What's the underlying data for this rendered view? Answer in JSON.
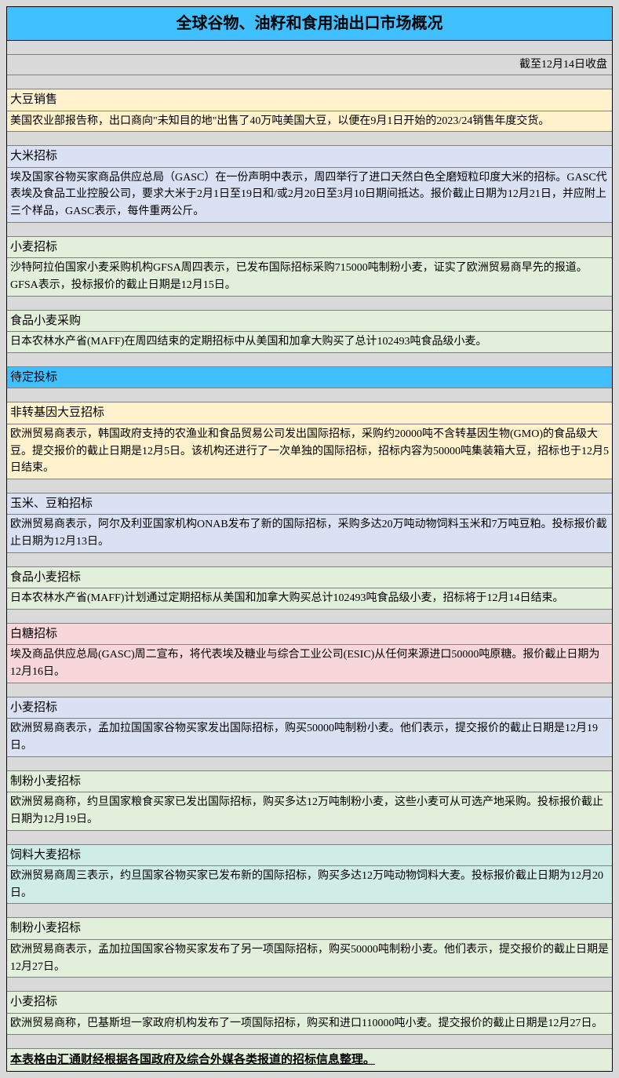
{
  "title": "全球谷物、油籽和食用油出口市场概况",
  "date_line": "截至12月14日收盘",
  "section_pending": "待定投标",
  "footer": "本表格由汇通财经根据各国政府及综合外媒各类报道的招标信息整理。",
  "colors": {
    "title_bg": "#40c0ff",
    "page_bg": "#d9d9d9",
    "yellow": "#fff2cc",
    "blue": "#d9e1f2",
    "green": "#e2efda",
    "pink": "#fce4d6",
    "teal": "#ddebf0",
    "rose": "#f8d7da",
    "mint": "#d0ece7"
  },
  "items1": [
    {
      "title": "大豆销售",
      "body": "美国农业部报告称，出口商向\"未知目的地\"出售了40万吨美国大豆，以便在9月1日开始的2023/24销售年度交货。",
      "color": "yellow"
    },
    {
      "title": "大米招标",
      "body": "埃及国家谷物买家商品供应总局（GASC）在一份声明中表示，周四举行了进口天然白色全磨短粒印度大米的招标。GASC代表埃及食品工业控股公司，要求大米于2月1日至19日和/或2月20日至3月10日期间抵达。报价截止日期为12月21日，并应附上三个样品，GASC表示，每件重两公斤。",
      "color": "blue"
    },
    {
      "title": "小麦招标",
      "body": "沙特阿拉伯国家小麦采购机构GFSA周四表示，已发布国际招标采购715000吨制粉小麦，证实了欧洲贸易商早先的报道。GFSA表示，投标报价的截止日期是12月15日。",
      "color": "green"
    },
    {
      "title": "食品小麦采购",
      "body": "日本农林水产省(MAFF)在周四结束的定期招标中从美国和加拿大购买了总计102493吨食品级小麦。",
      "color": "green"
    }
  ],
  "items2": [
    {
      "title": "非转基因大豆招标",
      "body": "欧洲贸易商表示，韩国政府支持的农渔业和食品贸易公司发出国际招标，采购约20000吨不含转基因生物(GMO)的食品级大豆。提交报价的截止日期是12月5日。该机构还进行了一次单独的国际招标，招标内容为50000吨集装箱大豆，招标也于12月5日结束。",
      "color": "yellow"
    },
    {
      "title": "玉米、豆粕招标",
      "body": "欧洲贸易商表示，阿尔及利亚国家机构ONAB发布了新的国际招标，采购多达20万吨动物饲料玉米和7万吨豆粕。投标报价截止日期为12月13日。",
      "color": "blue"
    },
    {
      "title": "食品小麦招标",
      "body": "日本农林水产省(MAFF)计划通过定期招标从美国和加拿大购买总计102493吨食品级小麦，招标将于12月14日结束。",
      "color": "green"
    },
    {
      "title": "白糖招标",
      "body": "埃及商品供应总局(GASC)周二宣布，将代表埃及糖业与综合工业公司(ESIC)从任何来源进口50000吨原糖。报价截止日期为12月16日。",
      "color": "rose"
    },
    {
      "title": "小麦招标",
      "body": "欧洲贸易商表示，孟加拉国国家谷物买家发出国际招标，购买50000吨制粉小麦。他们表示，提交报价的截止日期是12月19日。",
      "color": "blue"
    },
    {
      "title": "制粉小麦招标",
      "body": "欧洲贸易商称，约旦国家粮食买家已发出国际招标，购买多达12万吨制粉小麦，这些小麦可从可选产地采购。投标报价截止日期为12月19日。",
      "color": "green"
    },
    {
      "title": "饲料大麦招标",
      "body": "欧洲贸易商周三表示，约旦国家谷物买家已发布新的国际招标，购买多达12万吨动物饲料大麦。投标报价截止日期为12月20日。",
      "color": "mint"
    },
    {
      "title": "制粉小麦招标",
      "body": "欧洲贸易商表示，孟加拉国国家谷物买家发布了另一项国际招标，购买50000吨制粉小麦。他们表示，提交报价的截止日期是12月27日。",
      "color": "green"
    },
    {
      "title": "小麦招标",
      "body": "欧洲贸易商称，巴基斯坦一家政府机构发布了一项国际招标，购买和进口110000吨小麦。提交报价的截止日期是12月27日。",
      "color": "green"
    }
  ]
}
